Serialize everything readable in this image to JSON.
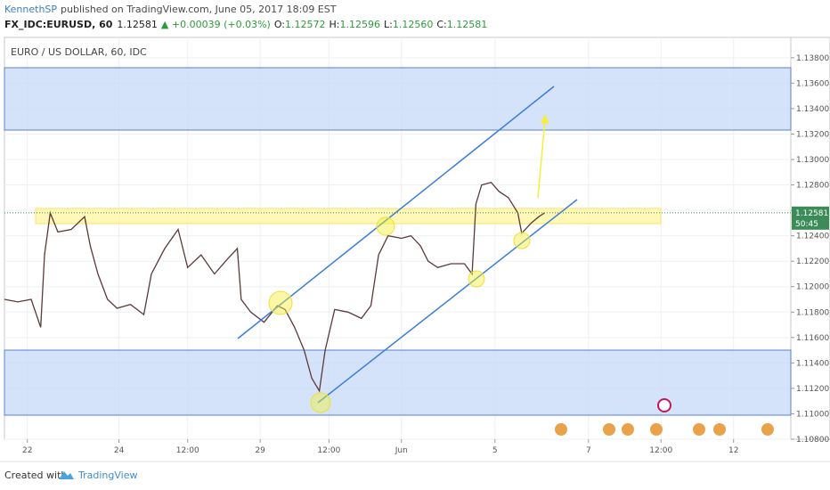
{
  "header": {
    "author": "KennethSP",
    "published": "published on TradingView.com, June 05, 2017 18:09 EST",
    "symbol": "FX_IDC:EURUSD, 60",
    "last": "1.12581",
    "change": "▲ +0.00039 (+0.03%)",
    "ohlc": [
      {
        "label": "O:",
        "value": "1.12572"
      },
      {
        "label": "H:",
        "value": "1.12596"
      },
      {
        "label": "L:",
        "value": "1.12560"
      },
      {
        "label": "C:",
        "value": "1.12581"
      }
    ]
  },
  "chart_data": {
    "type": "line",
    "title": "EURO / US DOLLAR, 60, IDC",
    "color": "#5a3a3a",
    "x": [
      -12,
      -5,
      2,
      7,
      9,
      12,
      16,
      23,
      30,
      33,
      37,
      42,
      47,
      54,
      61,
      65,
      72,
      79,
      84,
      91,
      98,
      105,
      110,
      112,
      117,
      124,
      131,
      135,
      140,
      145,
      149,
      153,
      156,
      161,
      168,
      175,
      180,
      184,
      189,
      196,
      201,
      206,
      210,
      215,
      222,
      229,
      233,
      235,
      238,
      243,
      247,
      252,
      257,
      259,
      264,
      268,
      271
    ],
    "values": [
      1.119,
      1.1188,
      1.119,
      1.1168,
      1.1225,
      1.1258,
      1.1243,
      1.1245,
      1.1255,
      1.1232,
      1.121,
      1.119,
      1.1183,
      1.1186,
      1.1178,
      1.121,
      1.123,
      1.1245,
      1.1215,
      1.1225,
      1.121,
      1.1222,
      1.123,
      1.119,
      1.118,
      1.1172,
      1.1185,
      1.1182,
      1.1168,
      1.115,
      1.1128,
      1.1118,
      1.115,
      1.1182,
      1.118,
      1.1175,
      1.1185,
      1.1225,
      1.124,
      1.1238,
      1.124,
      1.1232,
      1.122,
      1.1215,
      1.1218,
      1.1218,
      1.121,
      1.1265,
      1.128,
      1.1282,
      1.1275,
      1.127,
      1.1258,
      1.1242,
      1.125,
      1.1255,
      1.1258
    ],
    "xlim": [
      -12,
      400
    ],
    "ylim": [
      1.108,
      1.1396
    ],
    "grid": true,
    "xticks": [
      {
        "value": 0,
        "label": "22"
      },
      {
        "value": 48,
        "label": "24"
      },
      {
        "value": 84,
        "label": "12:00"
      },
      {
        "value": 122,
        "label": "29"
      },
      {
        "value": 158,
        "label": "12:00"
      },
      {
        "value": 196,
        "label": "Jun"
      },
      {
        "value": 245,
        "label": "5"
      },
      {
        "value": 294,
        "label": "7"
      },
      {
        "value": 332,
        "label": "12:00"
      },
      {
        "value": 370,
        "label": "12"
      }
    ],
    "yticks": [
      {
        "value": 1.108,
        "label": "1.10800"
      },
      {
        "value": 1.11,
        "label": "1.11000"
      },
      {
        "value": 1.112,
        "label": "1.11200"
      },
      {
        "value": 1.114,
        "label": "1.11400"
      },
      {
        "value": 1.116,
        "label": "1.11600"
      },
      {
        "value": 1.118,
        "label": "1.11800"
      },
      {
        "value": 1.12,
        "label": "1.12000"
      },
      {
        "value": 1.122,
        "label": "1.12200"
      },
      {
        "value": 1.124,
        "label": "1.12400"
      },
      {
        "value": 1.126,
        "label": "1.12600"
      },
      {
        "value": 1.128,
        "label": "1.12800"
      },
      {
        "value": 1.13,
        "label": "1.13000"
      },
      {
        "value": 1.132,
        "label": "1.13200"
      },
      {
        "value": 1.134,
        "label": "1.13400"
      },
      {
        "value": 1.136,
        "label": "1.13600"
      },
      {
        "value": 1.138,
        "label": "1.13800"
      }
    ],
    "price_label": {
      "value": 1.12581,
      "label": "1.12581"
    },
    "countdown": "50:45"
  },
  "footer": {
    "created": "Created with",
    "brand": "TradingView"
  }
}
